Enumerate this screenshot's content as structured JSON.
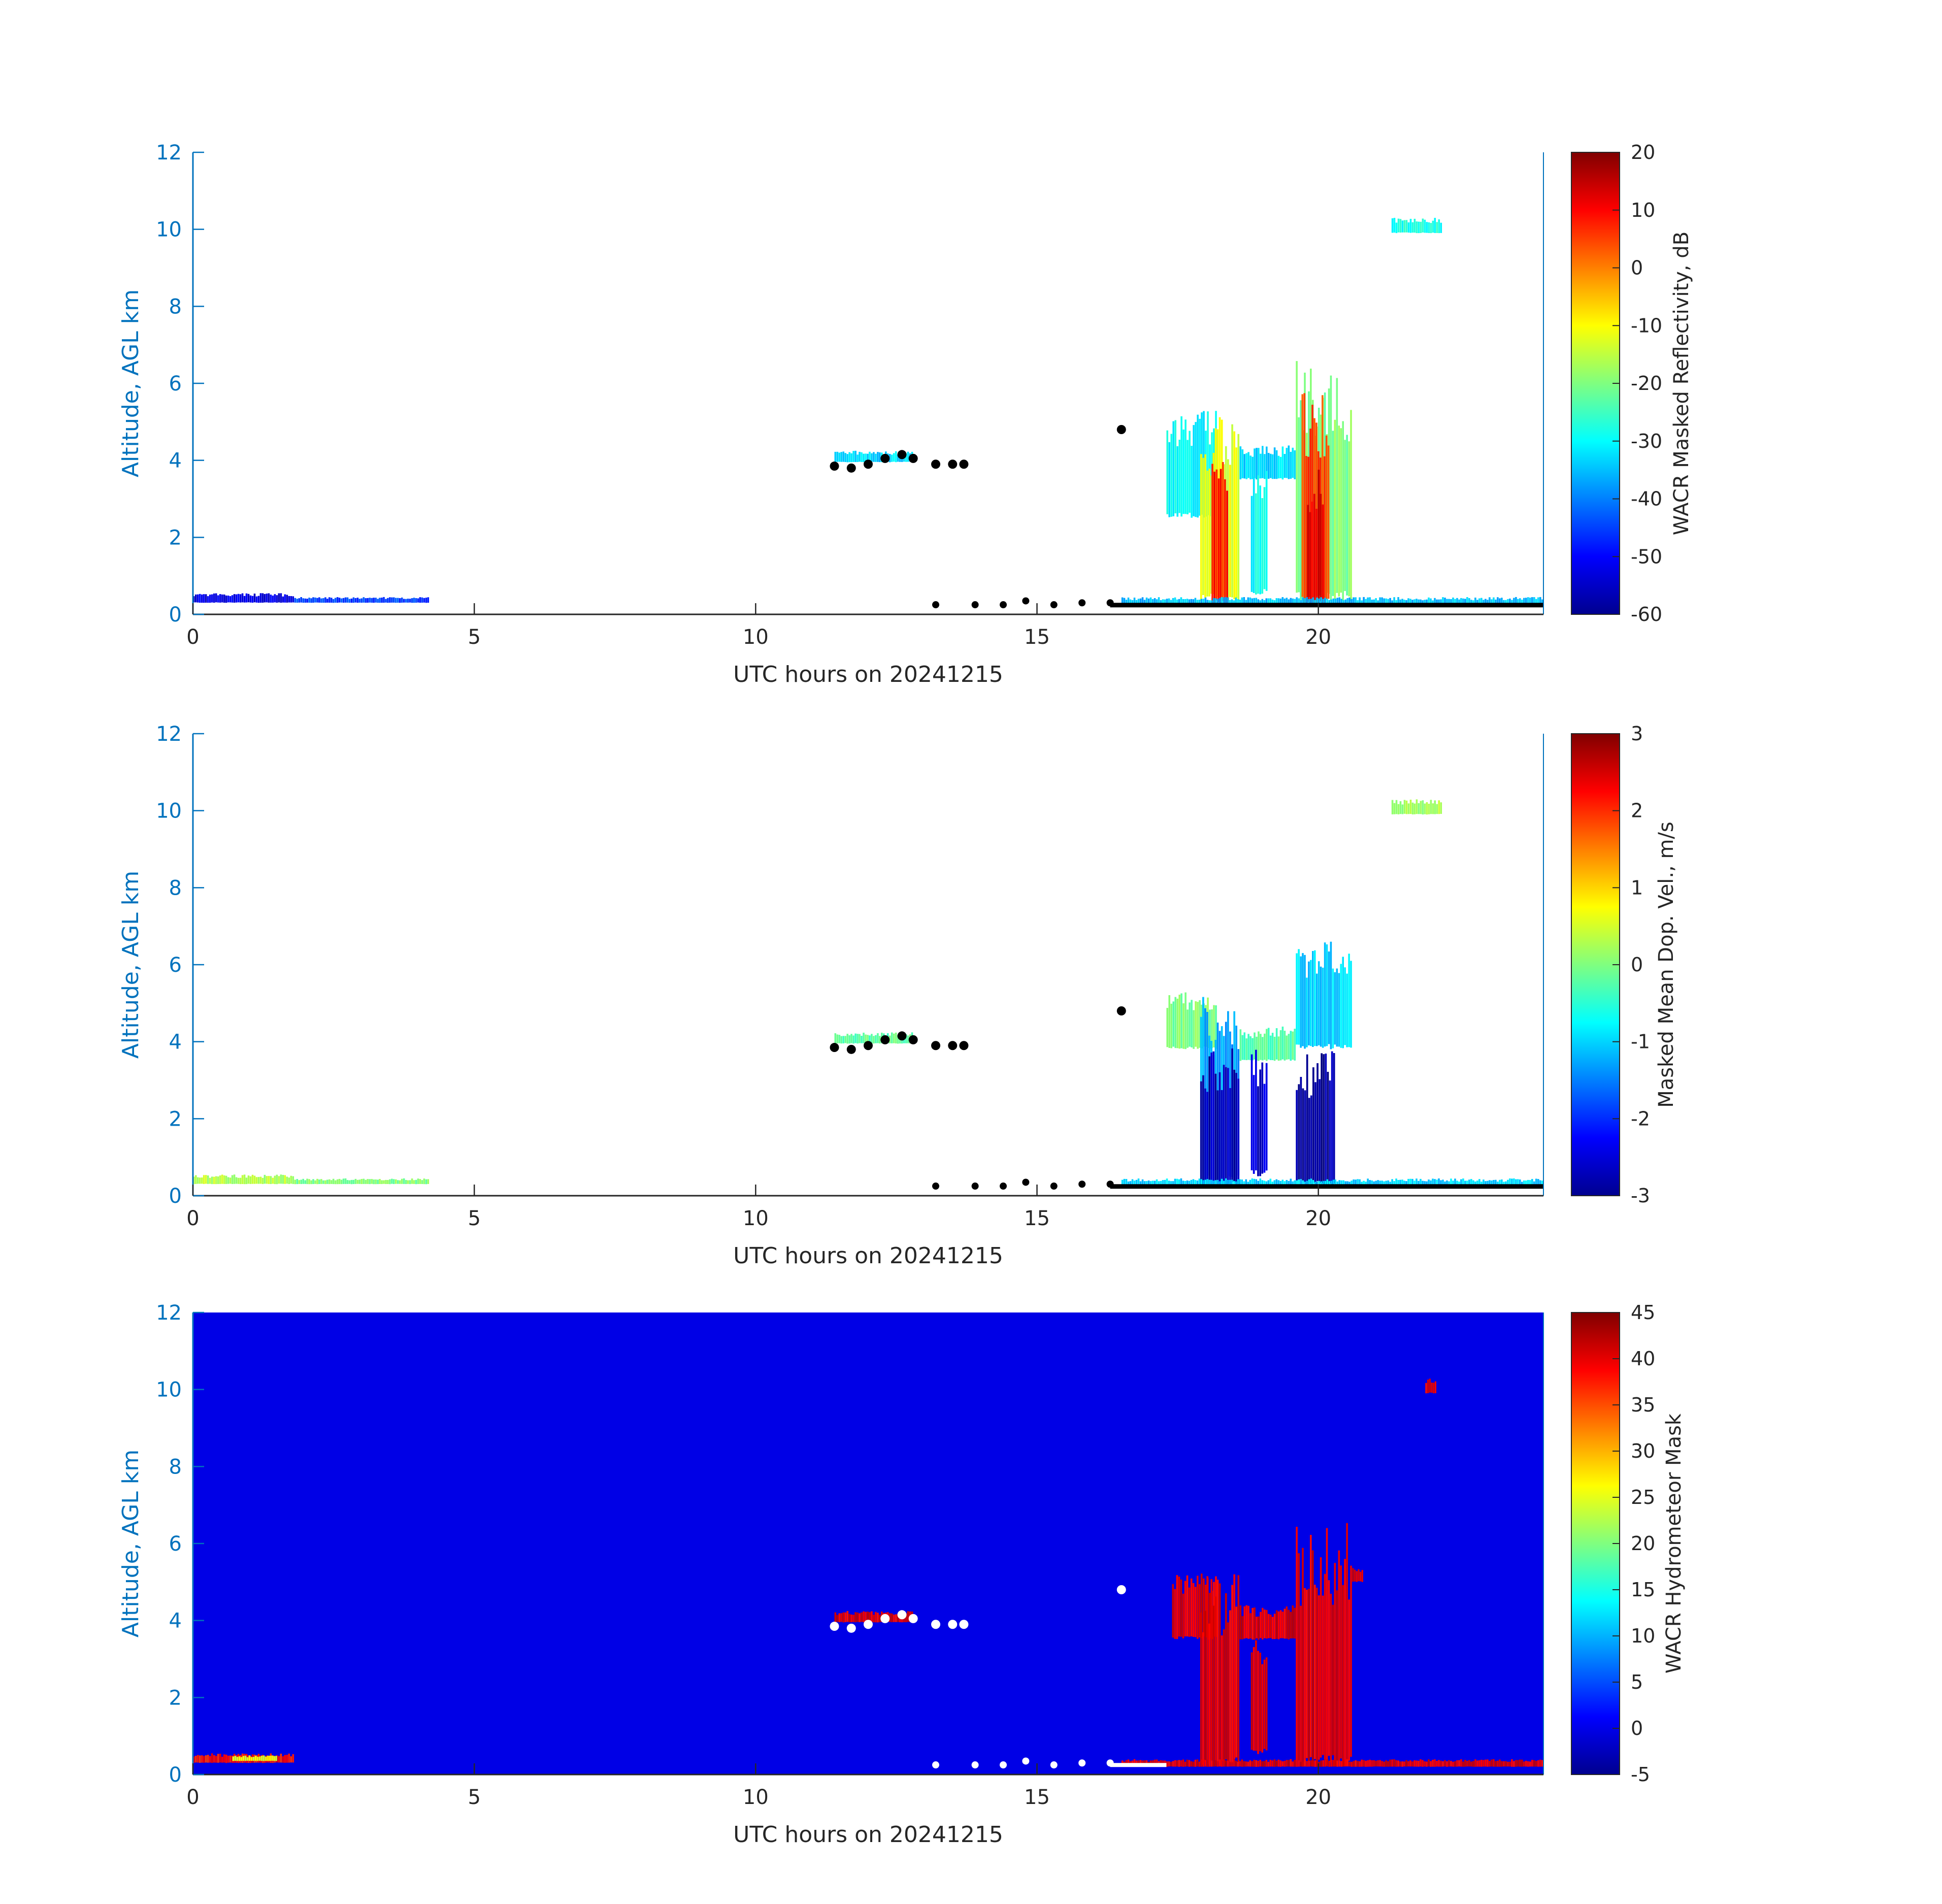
{
  "chart_data": [
    {
      "type": "heatmap",
      "variable": "reflectivity",
      "xlabel": "UTC hours on 20241215",
      "ylabel": "Altitude, AGL km",
      "xlim": [
        0,
        24
      ],
      "ylim": [
        0,
        12
      ],
      "xticks": [
        "0",
        "5",
        "10",
        "15",
        "20"
      ],
      "yticks": [
        "0",
        "2",
        "4",
        "6",
        "8",
        "10",
        "12"
      ],
      "colorbar": {
        "label": "WACR Masked Reflectivity, dB",
        "range": [
          -60,
          20
        ],
        "ticks": [
          "20",
          "10",
          "0",
          "-10",
          "-20",
          "-30",
          "-40",
          "-50",
          "-60"
        ],
        "colormap": "jet"
      },
      "background": "#ffffff",
      "marker_color": "#000000",
      "cloud_base_markers": [
        {
          "x": 11.4,
          "y": 3.85
        },
        {
          "x": 11.7,
          "y": 3.8
        },
        {
          "x": 12.0,
          "y": 3.9
        },
        {
          "x": 12.3,
          "y": 4.05
        },
        {
          "x": 12.6,
          "y": 4.15
        },
        {
          "x": 12.8,
          "y": 4.05
        },
        {
          "x": 13.2,
          "y": 3.9
        },
        {
          "x": 13.5,
          "y": 3.9
        },
        {
          "x": 13.7,
          "y": 3.9
        },
        {
          "x": 16.5,
          "y": 4.8
        },
        {
          "x": 13.2,
          "y": 0.25
        },
        {
          "x": 13.9,
          "y": 0.25
        },
        {
          "x": 14.4,
          "y": 0.25
        },
        {
          "x": 14.8,
          "y": 0.35
        },
        {
          "x": 15.3,
          "y": 0.25
        },
        {
          "x": 15.8,
          "y": 0.3
        },
        {
          "x": 16.3,
          "y": 0.3
        }
      ],
      "features": [
        {
          "x0": 0.0,
          "x1": 1.8,
          "y0": 0.3,
          "y1": 0.55,
          "value": -52
        },
        {
          "x0": 1.8,
          "x1": 4.2,
          "y0": 0.3,
          "y1": 0.45,
          "value": -45
        },
        {
          "x0": 11.4,
          "x1": 12.8,
          "y0": 3.95,
          "y1": 4.25,
          "value": -33
        },
        {
          "x0": 17.3,
          "x1": 18.2,
          "y0": 2.5,
          "y1": 5.3,
          "value": -30
        },
        {
          "x0": 17.9,
          "x1": 18.6,
          "y0": 0.3,
          "y1": 5.2,
          "value": -12
        },
        {
          "x0": 18.1,
          "x1": 18.4,
          "y0": 0.2,
          "y1": 4.0,
          "value": 8
        },
        {
          "x0": 18.6,
          "x1": 19.6,
          "y0": 3.5,
          "y1": 4.4,
          "value": -33
        },
        {
          "x0": 18.8,
          "x1": 19.1,
          "y0": 0.5,
          "y1": 3.8,
          "value": -30
        },
        {
          "x0": 19.6,
          "x1": 20.6,
          "y0": 0.3,
          "y1": 6.6,
          "value": -20
        },
        {
          "x0": 19.7,
          "x1": 20.2,
          "y0": 0.2,
          "y1": 6.1,
          "value": 5
        },
        {
          "x0": 19.8,
          "x1": 20.1,
          "y0": 0.2,
          "y1": 3.8,
          "value": 12
        },
        {
          "x0": 21.3,
          "x1": 22.2,
          "y0": 9.9,
          "y1": 10.3,
          "value": -28
        },
        {
          "x0": 16.5,
          "x1": 24.0,
          "y0": 0.2,
          "y1": 0.45,
          "value": -35
        }
      ]
    },
    {
      "type": "heatmap",
      "variable": "doppler_velocity",
      "xlabel": "UTC hours on 20241215",
      "ylabel": "Altitude, AGL km",
      "xlim": [
        0,
        24
      ],
      "ylim": [
        0,
        12
      ],
      "xticks": [
        "0",
        "5",
        "10",
        "15",
        "20"
      ],
      "yticks": [
        "0",
        "2",
        "4",
        "6",
        "8",
        "10",
        "12"
      ],
      "colorbar": {
        "label": "Masked Mean Dop. Vel., m/s",
        "range": [
          -3,
          3
        ],
        "ticks": [
          "3",
          "2",
          "1",
          "0",
          "-1",
          "-2",
          "-3"
        ],
        "colormap": "jet"
      },
      "background": "#ffffff",
      "marker_color": "#000000",
      "features": [
        {
          "x0": 0.0,
          "x1": 1.8,
          "y0": 0.3,
          "y1": 0.55,
          "value": 0.3
        },
        {
          "x0": 1.8,
          "x1": 4.2,
          "y0": 0.3,
          "y1": 0.45,
          "value": 0.0
        },
        {
          "x0": 11.4,
          "x1": 12.8,
          "y0": 3.95,
          "y1": 4.25,
          "value": -0.2
        },
        {
          "x0": 17.3,
          "x1": 18.2,
          "y0": 3.8,
          "y1": 5.3,
          "value": 0.0
        },
        {
          "x0": 17.9,
          "x1": 18.6,
          "y0": 0.3,
          "y1": 5.2,
          "value": -1.3
        },
        {
          "x0": 17.9,
          "x1": 18.6,
          "y0": 0.2,
          "y1": 3.9,
          "value": -2.7
        },
        {
          "x0": 18.6,
          "x1": 19.6,
          "y0": 3.5,
          "y1": 4.4,
          "value": -0.2
        },
        {
          "x0": 18.8,
          "x1": 19.1,
          "y0": 0.5,
          "y1": 3.8,
          "value": -2.5
        },
        {
          "x0": 19.6,
          "x1": 20.6,
          "y0": 3.8,
          "y1": 6.6,
          "value": -1.0
        },
        {
          "x0": 19.6,
          "x1": 20.3,
          "y0": 0.2,
          "y1": 3.8,
          "value": -2.8
        },
        {
          "x0": 21.3,
          "x1": 22.2,
          "y0": 9.9,
          "y1": 10.3,
          "value": 0.2
        },
        {
          "x0": 16.5,
          "x1": 24.0,
          "y0": 0.2,
          "y1": 0.45,
          "value": -1.0
        }
      ]
    },
    {
      "type": "heatmap",
      "variable": "hydrometeor_mask",
      "xlabel": "UTC hours on 20241215",
      "ylabel": "Altitude, AGL km",
      "xlim": [
        0,
        24
      ],
      "ylim": [
        0,
        12
      ],
      "xticks": [
        "0",
        "5",
        "10",
        "15",
        "20"
      ],
      "yticks": [
        "0",
        "2",
        "4",
        "6",
        "8",
        "10",
        "12"
      ],
      "colorbar": {
        "label": "WACR Hydrometeor Mask",
        "range": [
          -5,
          45
        ],
        "ticks": [
          "45",
          "40",
          "35",
          "30",
          "25",
          "20",
          "15",
          "10",
          "5",
          "0",
          "-5"
        ],
        "colormap": "jet"
      },
      "background_value": 0,
      "marker_color": "#ffffff",
      "features": [
        {
          "x0": 0.0,
          "x1": 1.8,
          "y0": 0.3,
          "y1": 0.55,
          "value": 38
        },
        {
          "x0": 0.7,
          "x1": 1.5,
          "y0": 0.35,
          "y1": 0.5,
          "value": 25
        },
        {
          "x0": 11.4,
          "x1": 12.8,
          "y0": 3.95,
          "y1": 4.25,
          "value": 40
        },
        {
          "x0": 17.4,
          "x1": 18.2,
          "y0": 3.5,
          "y1": 5.3,
          "value": 40
        },
        {
          "x0": 17.9,
          "x1": 18.6,
          "y0": 0.2,
          "y1": 5.2,
          "value": 40
        },
        {
          "x0": 18.6,
          "x1": 19.6,
          "y0": 3.5,
          "y1": 4.4,
          "value": 40
        },
        {
          "x0": 18.8,
          "x1": 19.1,
          "y0": 0.5,
          "y1": 3.8,
          "value": 40
        },
        {
          "x0": 19.6,
          "x1": 20.6,
          "y0": 0.2,
          "y1": 6.6,
          "value": 40
        },
        {
          "x0": 20.6,
          "x1": 20.8,
          "y0": 5.0,
          "y1": 5.4,
          "value": 40
        },
        {
          "x0": 21.9,
          "x1": 22.1,
          "y0": 9.9,
          "y1": 10.3,
          "value": 40
        },
        {
          "x0": 16.5,
          "x1": 24.0,
          "y0": 0.2,
          "y1": 0.4,
          "value": 40
        }
      ]
    }
  ]
}
